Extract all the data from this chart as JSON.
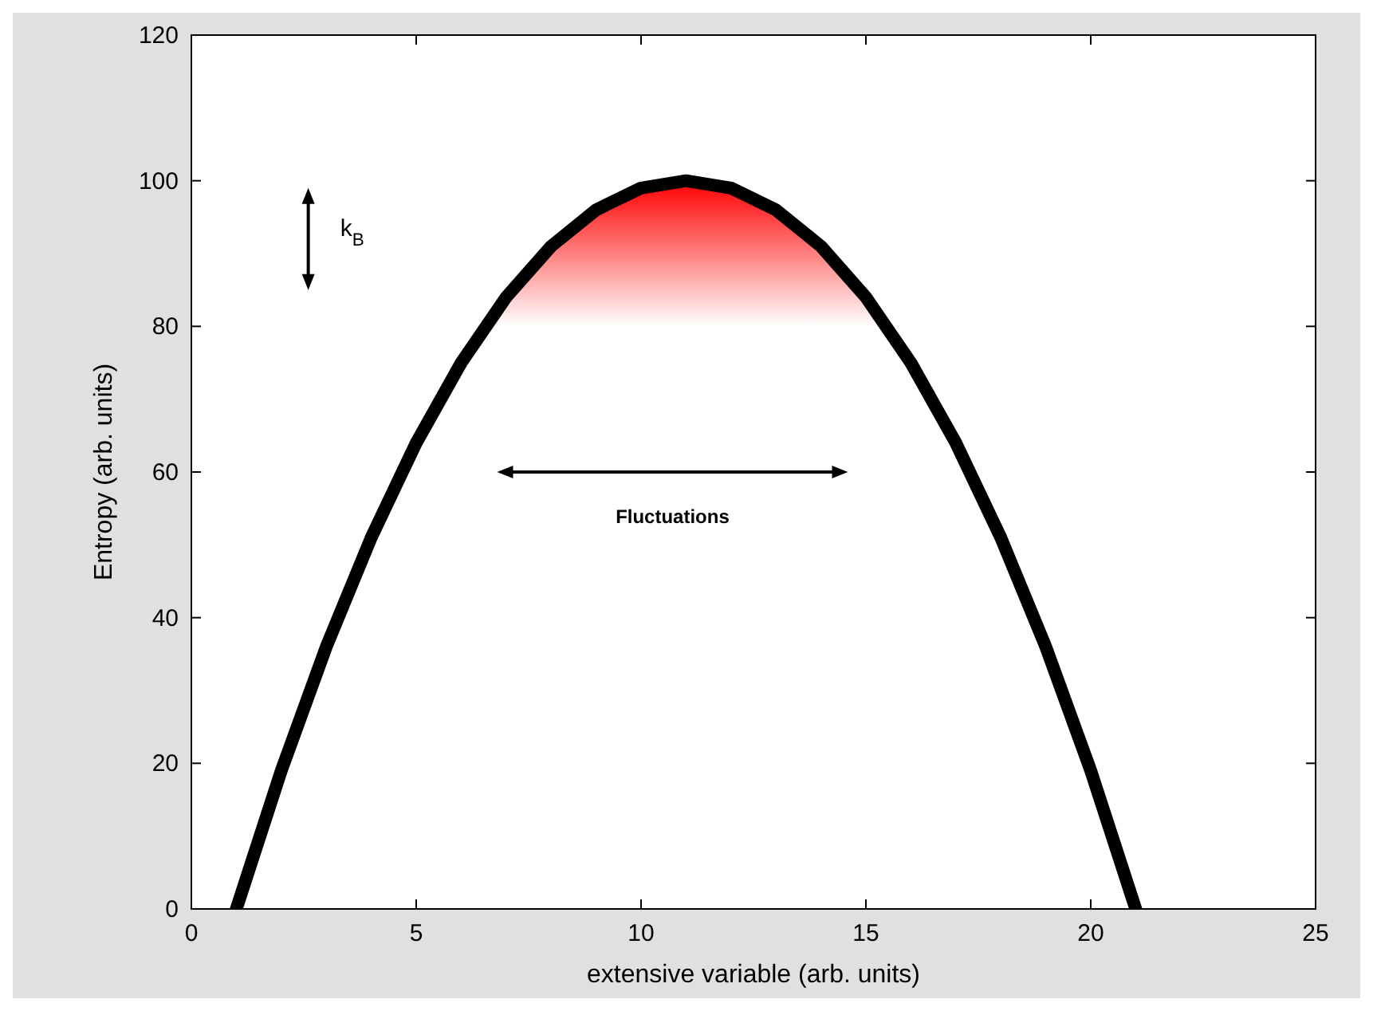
{
  "chart_data": {
    "type": "line",
    "xlabel": "extensive variable (arb. units)",
    "ylabel": "Entropy (arb. units)",
    "x": [
      1,
      2,
      3,
      4,
      5,
      6,
      7,
      8,
      9,
      10,
      11,
      12,
      13,
      14,
      15,
      16,
      17,
      18,
      19,
      20,
      21
    ],
    "series": [
      {
        "color": "#000000",
        "values": [
          0,
          19,
          36,
          51,
          64,
          75,
          84,
          91,
          96,
          99,
          100,
          99,
          96,
          91,
          84,
          75,
          64,
          51,
          36,
          19,
          0
        ]
      }
    ],
    "xlim": [
      0,
      25
    ],
    "xticks": [
      0,
      5,
      10,
      15,
      20,
      25
    ],
    "ylim": [
      0,
      120
    ],
    "yticks": [
      0,
      20,
      40,
      60,
      80,
      100,
      120
    ],
    "bands": [
      {
        "axis": "y",
        "from": 80,
        "to": 100,
        "color": "#ff0000"
      }
    ],
    "annotations": [
      "k$_{B}$",
      "Fluctuations"
    ],
    "grid": false,
    "marker": "none",
    "line_style": "solid"
  }
}
